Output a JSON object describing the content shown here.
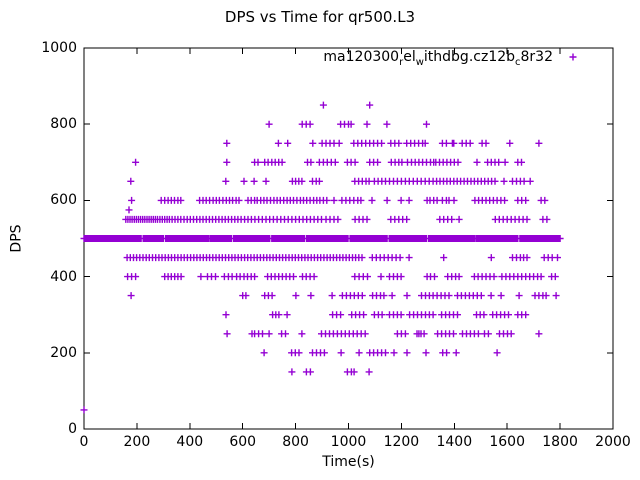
{
  "figure": {
    "background_color": "#ffffff",
    "text_color": "#000000",
    "marker_color": "#9400d3",
    "border_color": "#000000"
  },
  "chart_data": {
    "type": "scatter",
    "title": "DPS vs Time for qr500.L3",
    "xlabel": "Time(s)",
    "ylabel": "DPS",
    "xlim": [
      0,
      2000
    ],
    "ylim": [
      0,
      1000
    ],
    "xticks": [
      0,
      200,
      400,
      600,
      800,
      1000,
      1200,
      1400,
      1600,
      1800,
      2000
    ],
    "yticks": [
      0,
      200,
      400,
      600,
      800,
      1000
    ],
    "grid": false,
    "marker": "plus",
    "legend": {
      "position": "top-right-inside",
      "label_plain": "ma120300_rel_withdbg.cz12b_c8r32",
      "label_parts": [
        {
          "t": "ma120300",
          "sub": false
        },
        {
          "t": "r",
          "sub": true
        },
        {
          "t": "el",
          "sub": false
        },
        {
          "t": "w",
          "sub": true
        },
        {
          "t": "ithdbg.cz12b",
          "sub": false
        },
        {
          "t": "c",
          "sub": true
        },
        {
          "t": "8r32",
          "sub": false
        }
      ]
    },
    "series": [
      {
        "name": "ma120300_rel_withdbg.cz12b_c8r32",
        "dense_band": {
          "dps": 500,
          "step": 4,
          "segments": [
            [
              0,
              216
            ],
            [
              224,
              300
            ],
            [
              308,
              472
            ],
            [
              478,
              560
            ],
            [
              566,
              704
            ],
            [
              710,
              836
            ],
            [
              842,
              1000
            ],
            [
              1006,
              1148
            ],
            [
              1154,
              1296
            ],
            [
              1302,
              1478
            ],
            [
              1484,
              1642
            ],
            [
              1648,
              1800
            ]
          ]
        },
        "levels": [
          {
            "dps": 850,
            "times": [
              905,
              1080
            ]
          },
          {
            "dps": 800,
            "times": [
              700,
              825,
              840,
              855,
              970,
              985,
              1000,
              1010,
              1070,
              1145,
              1295
            ]
          },
          {
            "dps": 750,
            "times": [
              540,
              735,
              770,
              865,
              900,
              915,
              930,
              945,
              965,
              1020,
              1035,
              1050,
              1065,
              1080,
              1095,
              1110,
              1125,
              1160,
              1175,
              1190,
              1220,
              1235,
              1250,
              1265,
              1280,
              1290,
              1355,
              1370,
              1393,
              1398,
              1430,
              1445,
              1460,
              1505,
              1520,
              1610,
              1720
            ]
          },
          {
            "dps": 700,
            "times": [
              195,
              540,
              645,
              658,
              683,
              696,
              710,
              723,
              736,
              749,
              845,
              858,
              890,
              905,
              920,
              935,
              950,
              996,
              1010,
              1025,
              1080,
              1095,
              1110,
              1162,
              1176,
              1190,
              1202,
              1223,
              1238,
              1252,
              1266,
              1280,
              1295,
              1310,
              1322,
              1330,
              1344,
              1358,
              1372,
              1386,
              1400,
              1414,
              1486,
              1526,
              1540,
              1554,
              1568,
              1592,
              1640,
              1654
            ]
          },
          {
            "dps": 650,
            "times": [
              177,
              536,
              605,
              643,
              688,
              788,
              800,
              812,
              824,
              864,
              878,
              890,
              1024,
              1038,
              1052,
              1066,
              1078,
              1098,
              1112,
              1126,
              1140,
              1155,
              1170,
              1185,
              1200,
              1215,
              1230,
              1245,
              1260,
              1275,
              1290,
              1305,
              1320,
              1333,
              1346,
              1359,
              1372,
              1385,
              1398,
              1411,
              1424,
              1437,
              1450,
              1463,
              1476,
              1489,
              1502,
              1515,
              1528,
              1541,
              1554,
              1588,
              1620,
              1635,
              1650,
              1664,
              1687
            ]
          },
          {
            "dps": 600,
            "times": [
              180,
              292,
              305,
              318,
              330,
              342,
              355,
              366,
              437,
              450,
              462,
              475,
              488,
              500,
              512,
              525,
              538,
              550,
              562,
              575,
              586,
              620,
              632,
              645,
              655,
              668,
              680,
              692,
              705,
              718,
              730,
              742,
              755,
              768,
              780,
              792,
              805,
              818,
              830,
              842,
              855,
              868,
              880,
              892,
              905,
              918,
              945,
              975,
              990,
              1005,
              1020,
              1035,
              1047,
              1089,
              1146,
              1199,
              1229,
              1297,
              1308,
              1322,
              1335,
              1355,
              1370,
              1380,
              1399,
              1478,
              1492,
              1506,
              1520,
              1534,
              1548,
              1562,
              1576,
              1590,
              1640,
              1655,
              1670,
              1728,
              1742
            ]
          },
          {
            "dps": 575,
            "times": [
              170
            ]
          },
          {
            "dps": 550,
            "times": [
              158,
              166,
              174,
              182,
              190,
              198,
              206,
              214,
              222,
              230,
              238,
              246,
              254,
              262,
              270,
              278,
              287,
              296,
              305,
              314,
              323,
              333,
              344,
              355,
              366,
              378,
              390,
              402,
              414,
              426,
              438,
              450,
              462,
              474,
              486,
              498,
              510,
              522,
              534,
              546,
              558,
              570,
              582,
              594,
              607,
              620,
              633,
              646,
              660,
              674,
              688,
              702,
              716,
              730,
              744,
              758,
              772,
              786,
              800,
              814,
              828,
              842,
              856,
              870,
              884,
              898,
              915,
              930,
              945,
              960,
              1025,
              1040,
              1055,
              1070,
              1160,
              1175,
              1190,
              1205,
              1220,
              1345,
              1360,
              1375,
              1390,
              1418,
              1555,
              1570,
              1585,
              1600,
              1615,
              1630,
              1645,
              1660,
              1675,
              1735,
              1750
            ]
          },
          {
            "dps": 450,
            "times": [
              163,
              175,
              187,
              199,
              211,
              223,
              235,
              247,
              259,
              271,
              283,
              295,
              307,
              319,
              331,
              343,
              355,
              367,
              379,
              391,
              403,
              415,
              427,
              439,
              451,
              463,
              475,
              487,
              499,
              511,
              523,
              535,
              547,
              559,
              571,
              583,
              595,
              607,
              619,
              631,
              643,
              655,
              667,
              679,
              691,
              703,
              715,
              727,
              739,
              751,
              763,
              775,
              787,
              799,
              811,
              823,
              835,
              847,
              859,
              871,
              883,
              895,
              907,
              919,
              931,
              943,
              955,
              967,
              979,
              991,
              1003,
              1015,
              1027,
              1039,
              1051,
              1090,
              1105,
              1120,
              1135,
              1150,
              1165,
              1180,
              1195,
              1229,
              1360,
              1540,
              1620,
              1635,
              1650,
              1662,
              1675,
              1740,
              1755,
              1770,
              1790
            ]
          },
          {
            "dps": 400,
            "times": [
              165,
              180,
              195,
              305,
              318,
              330,
              343,
              355,
              367,
              442,
              467,
              482,
              497,
              531,
              546,
              560,
              577,
              590,
              605,
              618,
              632,
              645,
              694,
              708,
              722,
              736,
              750,
              764,
              778,
              792,
              826,
              840,
              855,
              870,
              1024,
              1040,
              1056,
              1072,
              1123,
              1155,
              1170,
              1185,
              1199,
              1297,
              1310,
              1325,
              1375,
              1390,
              1405,
              1418,
              1476,
              1490,
              1505,
              1520,
              1535,
              1550,
              1580,
              1595,
              1610,
              1625,
              1640,
              1655,
              1670,
              1685,
              1700,
              1715,
              1728,
              1768,
              1782
            ]
          },
          {
            "dps": 350,
            "times": [
              178,
              600,
              612,
              683,
              697,
              711,
              801,
              858,
              938,
              977,
              992,
              1007,
              1022,
              1037,
              1052,
              1091,
              1106,
              1121,
              1134,
              1165,
              1221,
              1276,
              1291,
              1306,
              1320,
              1335,
              1350,
              1365,
              1380,
              1412,
              1427,
              1442,
              1457,
              1472,
              1487,
              1502,
              1539,
              1577,
              1645,
              1705,
              1720,
              1735,
              1747,
              1785
            ]
          },
          {
            "dps": 300,
            "times": [
              537,
              713,
              725,
              737,
              768,
              940,
              955,
              970,
              1012,
              1027,
              1042,
              1057,
              1098,
              1113,
              1127,
              1155,
              1170,
              1185,
              1199,
              1231,
              1246,
              1261,
              1276,
              1291,
              1306,
              1320,
              1352,
              1367,
              1382,
              1397,
              1412,
              1484,
              1498,
              1512,
              1545,
              1560,
              1575,
              1590,
              1605,
              1640,
              1655,
              1670
            ]
          },
          {
            "dps": 250,
            "times": [
              541,
              635,
              645,
              660,
              675,
              700,
              747,
              762,
              824,
              898,
              913,
              928,
              943,
              958,
              973,
              988,
              1003,
              1018,
              1033,
              1048,
              1063,
              1185,
              1200,
              1215,
              1259,
              1266,
              1274,
              1286,
              1337,
              1352,
              1367,
              1382,
              1397,
              1431,
              1446,
              1461,
              1476,
              1491,
              1514,
              1529,
              1571,
              1586,
              1601,
              1615,
              1720
            ]
          },
          {
            "dps": 200,
            "times": [
              681,
              785,
              799,
              813,
              864,
              879,
              894,
              909,
              972,
              1040,
              1080,
              1095,
              1110,
              1125,
              1140,
              1172,
              1221,
              1293,
              1356,
              1371,
              1407,
              1562
            ]
          },
          {
            "dps": 150,
            "times": [
              786,
              841,
              856,
              996,
              1011,
              1021,
              1078
            ]
          },
          {
            "dps": 50,
            "times": [
              0
            ]
          }
        ]
      }
    ]
  }
}
